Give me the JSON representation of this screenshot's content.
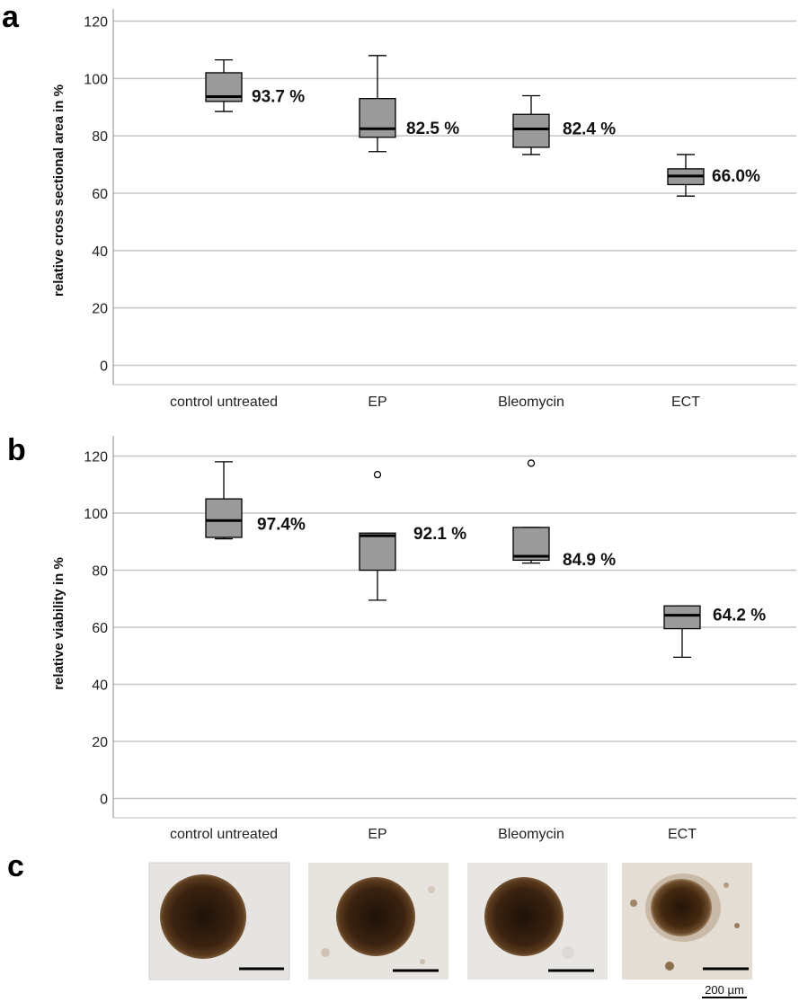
{
  "panels": [
    "a",
    "b",
    "c"
  ],
  "chart_data": [
    {
      "type": "box",
      "panel": "a",
      "ylabel": "relative cross sectional area in %",
      "ylim": [
        -7,
        127
      ],
      "yticks": [
        0,
        20,
        40,
        60,
        80,
        100,
        120
      ],
      "categories": [
        "control untreated",
        "EP",
        "Bleomycin",
        "ECT"
      ],
      "boxes": [
        {
          "whisker_low": 88.5,
          "q1": 92,
          "median": 93.7,
          "q3": 102,
          "whisker_high": 106.5,
          "outliers": []
        },
        {
          "whisker_low": 74.5,
          "q1": 79.5,
          "median": 82.5,
          "q3": 93,
          "whisker_high": 108,
          "outliers": []
        },
        {
          "whisker_low": 73.5,
          "q1": 76,
          "median": 82.4,
          "q3": 87.5,
          "whisker_high": 94,
          "outliers": []
        },
        {
          "whisker_low": 59,
          "q1": 63,
          "median": 66.0,
          "q3": 68.5,
          "whisker_high": 73.5,
          "outliers": []
        }
      ],
      "annotations": [
        "93.7 %",
        "82.5 %",
        "82.4 %",
        "66.0%"
      ]
    },
    {
      "type": "box",
      "panel": "b",
      "ylabel": "relative viability in %",
      "ylim": [
        -7,
        127
      ],
      "yticks": [
        0,
        20,
        40,
        60,
        80,
        100,
        120
      ],
      "categories": [
        "control untreated",
        "EP",
        "Bleomycin",
        "ECT"
      ],
      "boxes": [
        {
          "whisker_low": 91,
          "q1": 91.5,
          "median": 97.4,
          "q3": 105,
          "whisker_high": 118,
          "outliers": []
        },
        {
          "whisker_low": 69.5,
          "q1": 80,
          "median": 92.1,
          "q3": 93,
          "whisker_high": 93,
          "outliers": [
            113.5
          ]
        },
        {
          "whisker_low": 82.5,
          "q1": 83.5,
          "median": 84.9,
          "q3": 95,
          "whisker_high": 95,
          "outliers": [
            117.5
          ]
        },
        {
          "whisker_low": 49.5,
          "q1": 59.5,
          "median": 64.2,
          "q3": 67.5,
          "whisker_high": 67.5,
          "outliers": []
        }
      ],
      "annotations": [
        "97.4%",
        "92.1 %",
        "84.9 %",
        "64.2 %"
      ]
    }
  ],
  "images": {
    "scalebar_label": "200 µm",
    "items": [
      {
        "name": "control untreated",
        "color": "#3a2210"
      },
      {
        "name": "EP",
        "color": "#3d2411"
      },
      {
        "name": "Bleomycin",
        "color": "#3b2311"
      },
      {
        "name": "ECT",
        "color": "#43280f"
      }
    ]
  }
}
